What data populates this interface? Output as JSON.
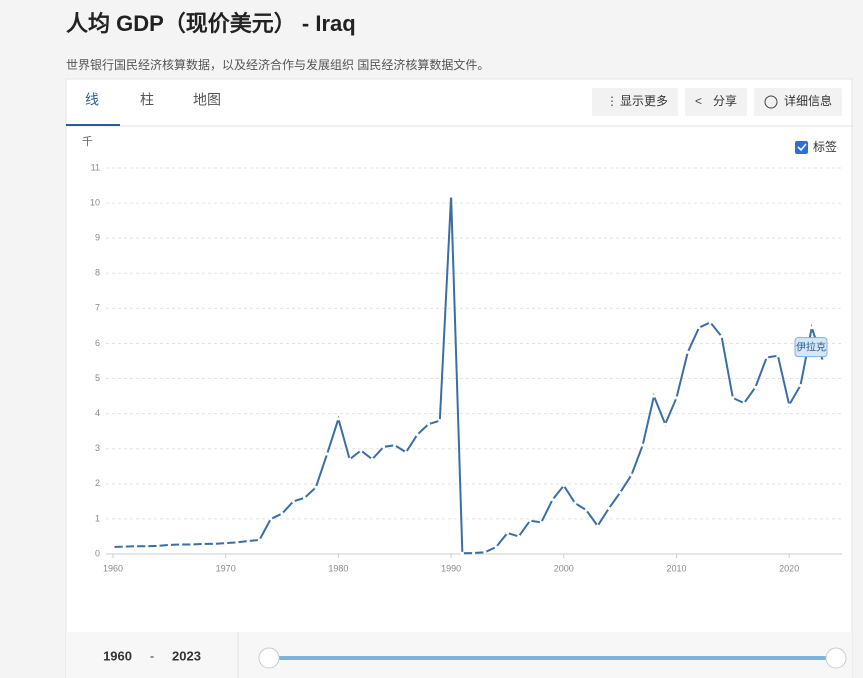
{
  "header": {
    "title": "人均 GDP（现价美元） - Iraq",
    "subtitle": "世界银行国民经济核算数据，以及经济合作与发展组织 国民经济核算数据文件。"
  },
  "tabs": [
    "线",
    "柱",
    "地图"
  ],
  "buttons": [
    "显示更多",
    "分享",
    "详细信息"
  ],
  "label_toggle": "标签",
  "range": {
    "start": "1960",
    "separator": "-",
    "end": "2023"
  },
  "chart_data": {
    "type": "line",
    "y_label": "千",
    "annotation": "伊拉克",
    "x": [
      1960,
      1961,
      1962,
      1963,
      1964,
      1965,
      1966,
      1967,
      1968,
      1969,
      1970,
      1971,
      1972,
      1973,
      1974,
      1975,
      1976,
      1977,
      1978,
      1979,
      1980,
      1981,
      1982,
      1983,
      1984,
      1985,
      1986,
      1987,
      1988,
      1989,
      1990,
      1991,
      1992,
      1993,
      1994,
      1995,
      1996,
      1997,
      1998,
      1999,
      2000,
      2001,
      2002,
      2003,
      2004,
      2005,
      2006,
      2007,
      2008,
      2009,
      2010,
      2011,
      2012,
      2013,
      2014,
      2015,
      2016,
      2017,
      2018,
      2019,
      2020,
      2021,
      2022,
      2023
    ],
    "series": [
      {
        "name": "伊拉克",
        "color": "#3a6ea5",
        "values": [
          0.2,
          0.21,
          0.22,
          0.22,
          0.23,
          0.26,
          0.27,
          0.27,
          0.29,
          0.29,
          0.31,
          0.33,
          0.37,
          0.4,
          1.0,
          1.15,
          1.5,
          1.6,
          1.9,
          2.85,
          3.85,
          2.7,
          2.95,
          2.7,
          3.05,
          3.1,
          2.9,
          3.4,
          3.7,
          3.8,
          10.2,
          0.02,
          0.03,
          0.05,
          0.2,
          0.6,
          0.5,
          0.95,
          0.9,
          1.55,
          1.95,
          1.45,
          1.25,
          0.8,
          1.3,
          1.75,
          2.25,
          3.1,
          4.5,
          3.7,
          4.45,
          5.75,
          6.45,
          6.6,
          6.2,
          4.45,
          4.3,
          4.75,
          5.6,
          5.65,
          4.25,
          4.8,
          6.45,
          5.5
        ]
      }
    ],
    "xlim": [
      1960,
      2023
    ],
    "xticks": [
      1960,
      1970,
      1980,
      1990,
      2000,
      2010,
      2020
    ],
    "ylim": [
      0,
      11
    ],
    "yticks": [
      0,
      1,
      2,
      3,
      4,
      5,
      6,
      7,
      8,
      9,
      10,
      11
    ],
    "grid": true
  }
}
